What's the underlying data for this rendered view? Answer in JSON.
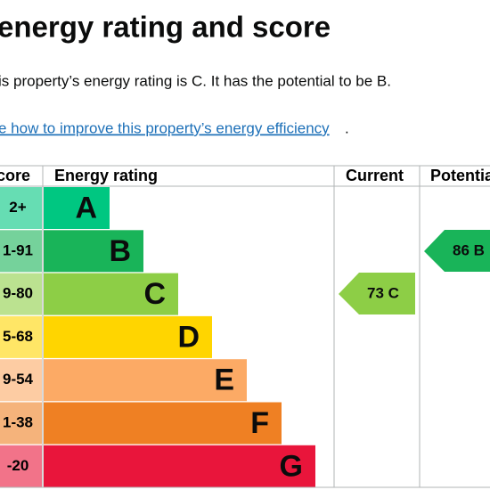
{
  "header": {
    "title": "energy rating and score"
  },
  "intro": "is property’s energy rating is C. It has the potential to be B.",
  "link": {
    "text": "e how to improve this property’s energy efficiency",
    "after": "."
  },
  "table": {
    "columns": [
      "core",
      "Energy rating",
      "Current",
      "Potentia"
    ],
    "rows": [
      {
        "score": "2+",
        "rating": "A"
      },
      {
        "score": "1-91",
        "rating": "B"
      },
      {
        "score": "9-80",
        "rating": "C"
      },
      {
        "score": "5-68",
        "rating": "D"
      },
      {
        "score": "9-54",
        "rating": "E"
      },
      {
        "score": "1-38",
        "rating": "F"
      },
      {
        "score": "-20",
        "rating": "G"
      }
    ],
    "current": "73 C",
    "potential": "86 B"
  }
}
